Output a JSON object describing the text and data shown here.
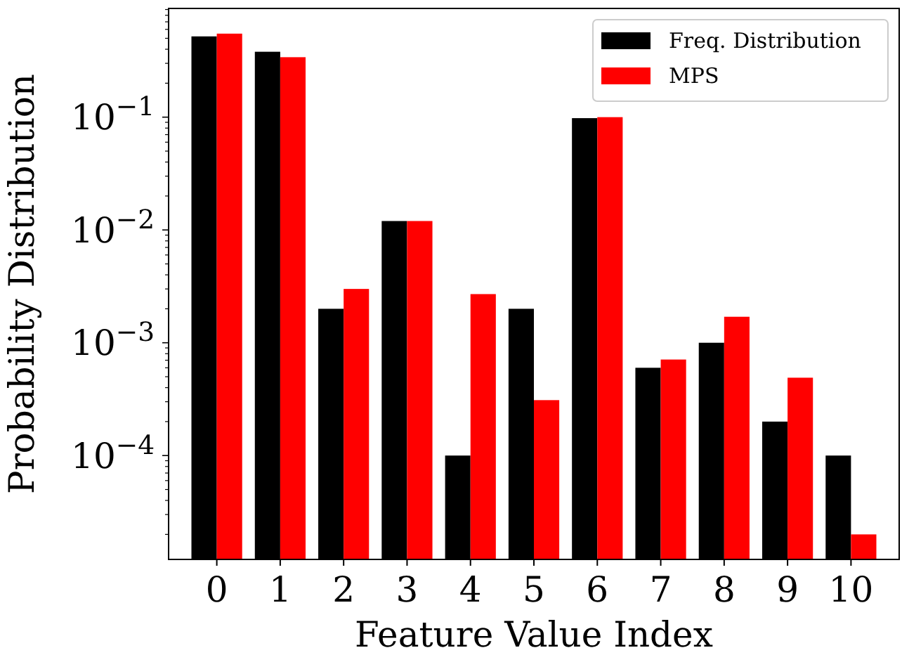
{
  "chart_data": {
    "type": "bar",
    "xlabel": "Feature Value Index",
    "ylabel": "Probability Distribution",
    "categories": [
      "0",
      "1",
      "2",
      "3",
      "4",
      "5",
      "6",
      "7",
      "8",
      "9",
      "10"
    ],
    "series": [
      {
        "name": "Freq. Distribution",
        "color": "#000000",
        "values": [
          0.52,
          0.38,
          0.002,
          0.012,
          0.0001,
          0.002,
          0.098,
          0.0006,
          0.001,
          0.0002,
          0.0001
        ]
      },
      {
        "name": "MPS",
        "color": "#ff0000",
        "values": [
          0.55,
          0.34,
          0.003,
          0.012,
          0.0027,
          0.00031,
          0.1,
          0.00071,
          0.0017,
          0.00049,
          2e-05
        ]
      }
    ],
    "log": true,
    "ylim": [
      1.2e-05,
      0.92
    ],
    "yticks": [
      {
        "value": 2e-05,
        "label": null
      },
      {
        "value": 3e-05,
        "label": null
      },
      {
        "value": 4e-05,
        "label": null
      },
      {
        "value": 5e-05,
        "label": null
      },
      {
        "value": 6e-05,
        "label": null
      },
      {
        "value": 7e-05,
        "label": null
      },
      {
        "value": 8e-05,
        "label": null
      },
      {
        "value": 9e-05,
        "label": null
      },
      {
        "value": 0.0001,
        "label": "10$^{−4}$"
      },
      {
        "value": 0.0002,
        "label": null
      },
      {
        "value": 0.0003,
        "label": null
      },
      {
        "value": 0.0004,
        "label": null
      },
      {
        "value": 0.0005,
        "label": null
      },
      {
        "value": 0.0006,
        "label": null
      },
      {
        "value": 0.0007,
        "label": null
      },
      {
        "value": 0.0008,
        "label": null
      },
      {
        "value": 0.0009,
        "label": null
      },
      {
        "value": 0.001,
        "label": "10$^{−3}$"
      },
      {
        "value": 0.002,
        "label": null
      },
      {
        "value": 0.003,
        "label": null
      },
      {
        "value": 0.004,
        "label": null
      },
      {
        "value": 0.005,
        "label": null
      },
      {
        "value": 0.006,
        "label": null
      },
      {
        "value": 0.007,
        "label": null
      },
      {
        "value": 0.008,
        "label": null
      },
      {
        "value": 0.009,
        "label": null
      },
      {
        "value": 0.01,
        "label": "10$^{−2}$"
      },
      {
        "value": 0.02,
        "label": null
      },
      {
        "value": 0.03,
        "label": null
      },
      {
        "value": 0.04,
        "label": null
      },
      {
        "value": 0.05,
        "label": null
      },
      {
        "value": 0.06,
        "label": null
      },
      {
        "value": 0.07,
        "label": null
      },
      {
        "value": 0.08,
        "label": null
      },
      {
        "value": 0.09,
        "label": null
      },
      {
        "value": 0.1,
        "label": "10$^{−1}$"
      },
      {
        "value": 0.2,
        "label": null
      },
      {
        "value": 0.3,
        "label": null
      },
      {
        "value": 0.4,
        "label": null
      },
      {
        "value": 0.5,
        "label": null
      },
      {
        "value": 0.6,
        "label": null
      },
      {
        "value": 0.7,
        "label": null
      },
      {
        "value": 0.8,
        "label": null
      },
      {
        "value": 0.9,
        "label": null
      }
    ],
    "legend": "top right",
    "grid": false
  }
}
